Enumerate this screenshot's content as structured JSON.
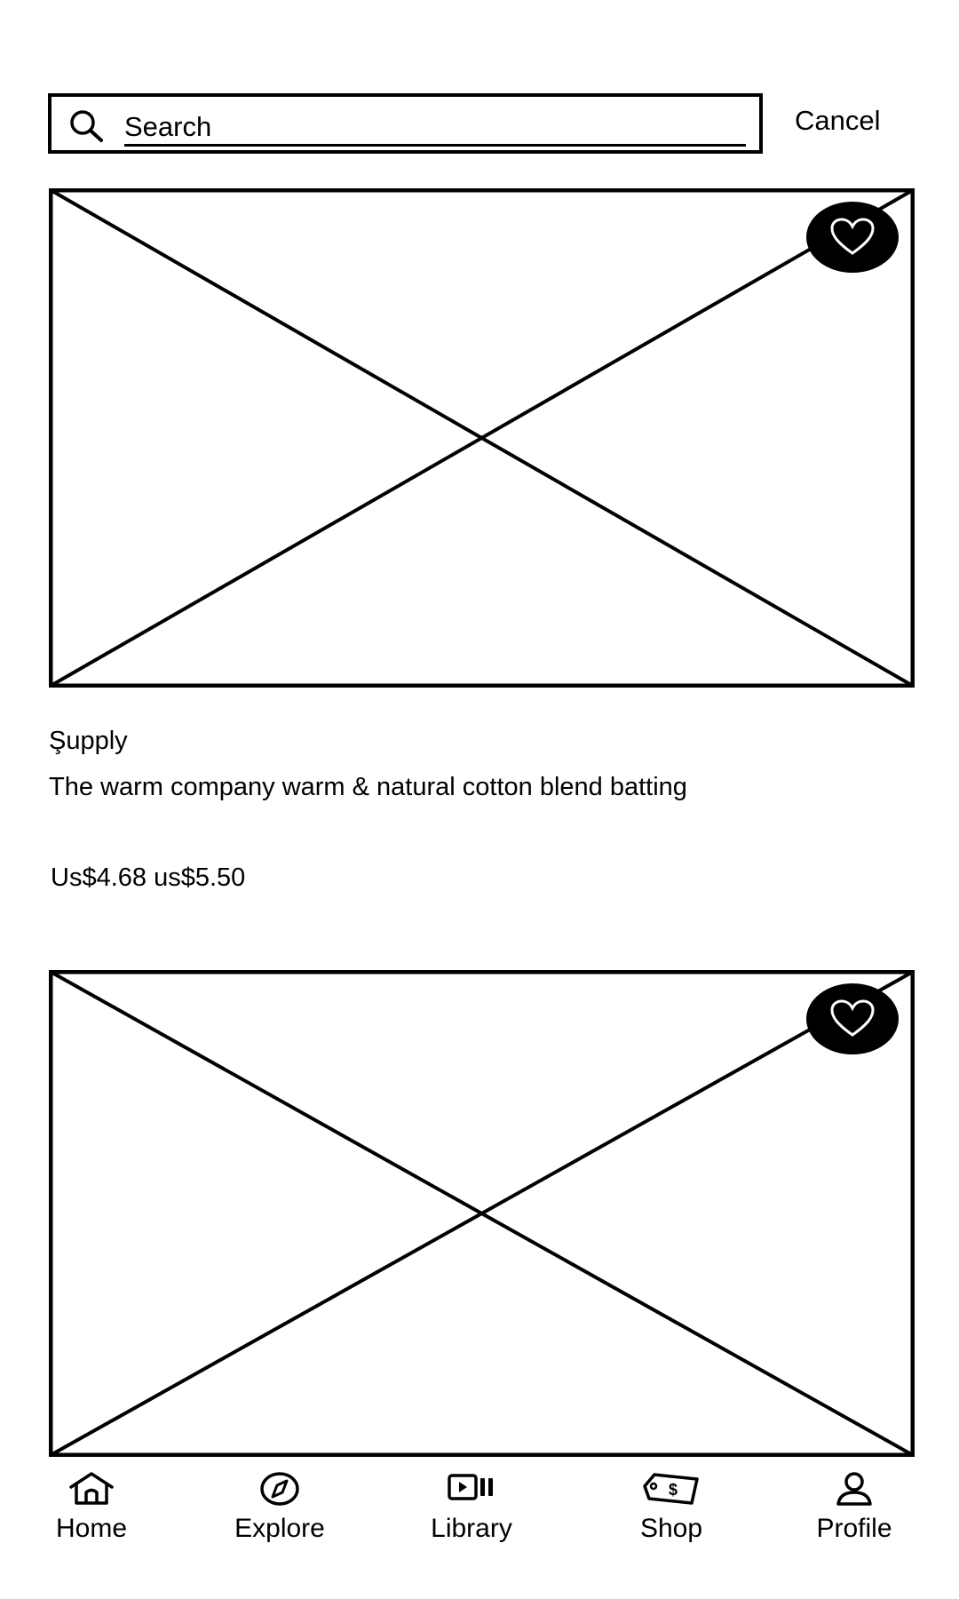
{
  "search": {
    "placeholder": "Search",
    "value": "",
    "cancel_label": "Cancel"
  },
  "products": [
    {
      "image_icon": "image-placeholder",
      "favorite_icon": "heart-icon",
      "vendor": "Şupply",
      "title": "The warm company warm & natural cotton blend batting",
      "price": "Us$4.68 us$5.50"
    },
    {
      "image_icon": "image-placeholder",
      "favorite_icon": "heart-icon"
    }
  ],
  "bottom_nav": {
    "items": [
      {
        "label": "Home",
        "icon": "home-icon"
      },
      {
        "label": "Explore",
        "icon": "compass-icon"
      },
      {
        "label": "Library",
        "icon": "library-icon"
      },
      {
        "label": "Shop",
        "icon": "price-tag-icon"
      },
      {
        "label": "Profile",
        "icon": "profile-icon"
      }
    ]
  },
  "colors": {
    "foreground": "#000000",
    "background": "#ffffff"
  }
}
